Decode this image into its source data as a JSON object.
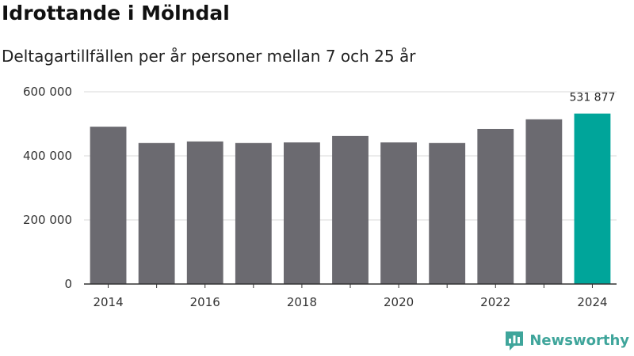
{
  "title": "Idrottande i Mölndal",
  "subtitle": "Deltagartillfällen per år personer mellan 7 och 25 år",
  "brand": {
    "name": "Newsworthy",
    "icon": "newsworthy-logo-icon",
    "color": "#3fa59b"
  },
  "chart_data": {
    "type": "bar",
    "title": "Idrottande i Mölndal",
    "subtitle": "Deltagartillfällen per år personer mellan 7 och 25 år",
    "xlabel": "",
    "ylabel": "",
    "categories": [
      "2014",
      "2015",
      "2016",
      "2017",
      "2018",
      "2019",
      "2020",
      "2021",
      "2022",
      "2023",
      "2024"
    ],
    "values": [
      491000,
      440000,
      445000,
      440000,
      442000,
      462000,
      442000,
      440000,
      484000,
      514000,
      531877
    ],
    "ylim": [
      0,
      600000
    ],
    "yticks": [
      0,
      200000,
      400000,
      600000
    ],
    "ytick_labels": [
      "0",
      "200 000",
      "400 000",
      "600 000"
    ],
    "xtick_labels": [
      "2014",
      "",
      "2016",
      "",
      "2018",
      "",
      "2020",
      "",
      "2022",
      "",
      "2024"
    ],
    "grid": true,
    "highlight_index": 10,
    "highlight_label": "531 877",
    "colors": {
      "bar": "#6b6a70",
      "highlight": "#00a59a",
      "grid": "#d9d9d9",
      "axis": "#333333"
    }
  }
}
